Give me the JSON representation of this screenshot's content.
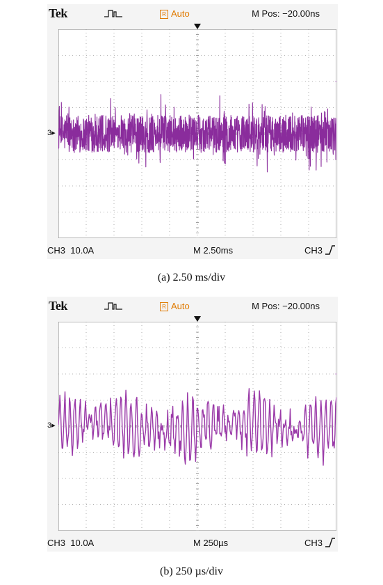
{
  "panels": [
    {
      "brand": "Tek",
      "trigger_mode": "Auto",
      "trigger_badge": "R",
      "m_pos": "M Pos: −20.00ns",
      "channel": "CH3",
      "scale": "10.0A",
      "timebase": "M 2.50ms",
      "trigger_source": "CH3",
      "ground_marker": "3",
      "caption": "(a)  2.50 ms/div",
      "trace_color": "#8a2c9c"
    },
    {
      "brand": "Tek",
      "trigger_mode": "Auto",
      "trigger_badge": "R",
      "m_pos": "M Pos: −20.00ns",
      "channel": "CH3",
      "scale": "10.0A",
      "timebase": "M 250µs",
      "trigger_source": "CH3",
      "ground_marker": "3",
      "caption": "(b)  250 µs/div",
      "trace_color": "#9a3aa8"
    }
  ],
  "chart_data": [
    {
      "type": "line",
      "grid": true,
      "divisions": {
        "x": 10,
        "y": 8
      },
      "x": {
        "unit": "ms",
        "per_div": 2.5,
        "range": [
          0,
          25
        ]
      },
      "y": {
        "unit": "A",
        "per_div": 10,
        "range": [
          -40,
          40
        ]
      },
      "series": [
        {
          "name": "",
          "waveform": "dense noise",
          "mean_div": 0.0,
          "peak_div": 1.3,
          "samples": 1400
        }
      ]
    },
    {
      "type": "line",
      "grid": true,
      "divisions": {
        "x": 10,
        "y": 8
      },
      "x": {
        "unit": "µs",
        "per_div": 250,
        "range": [
          0,
          2500
        ]
      },
      "y": {
        "unit": "A",
        "per_div": 10,
        "range": [
          -40,
          40
        ]
      },
      "series": [
        {
          "name": "",
          "waveform": "oscillating ripple",
          "mean_div": 0.0,
          "peak_div": 1.4,
          "samples": 380
        }
      ]
    }
  ]
}
